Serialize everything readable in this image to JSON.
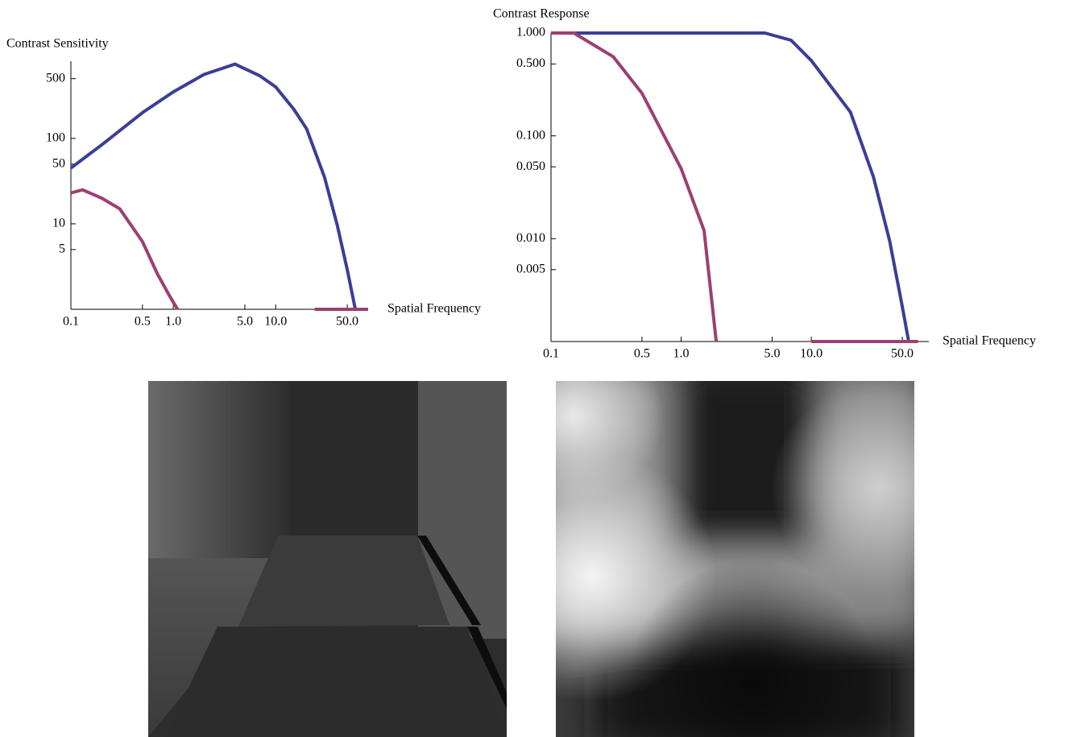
{
  "chart_data": [
    {
      "type": "line",
      "y_label": "Contrast Sensitivity",
      "x_label": "Spatial Frequency",
      "xlog": true,
      "ylog": true,
      "xlim": [
        0.1,
        80
      ],
      "ylim": [
        1,
        800
      ],
      "xticks": [
        0.1,
        0.5,
        {
          "value": 1,
          "label": "1.0"
        },
        {
          "value": 5,
          "label": "5.0"
        },
        {
          "value": 10,
          "label": "10.0"
        },
        {
          "value": 50,
          "label": "50.0"
        }
      ],
      "yticks": [
        5,
        10,
        50,
        100,
        500
      ],
      "series": [
        {
          "color": "#3b3e97",
          "x": [
            0.1,
            0.2,
            0.5,
            1,
            2,
            4,
            7,
            10,
            15,
            20,
            30,
            40,
            50,
            60
          ],
          "values": [
            45,
            84,
            200,
            350,
            560,
            740,
            540,
            400,
            220,
            130,
            35,
            9.6,
            2.9,
            1
          ]
        },
        {
          "color": "#9c3f72",
          "x": [
            0.1,
            0.13,
            0.2,
            0.3,
            0.5,
            0.7,
            0.9,
            1.1,
            1.2,
            24,
            80
          ],
          "values": [
            23,
            25,
            20,
            15,
            6.2,
            2.6,
            1.5,
            1,
            null,
            1,
            1
          ]
        }
      ]
    },
    {
      "type": "line",
      "y_label": "Contrast Response",
      "x_label": "Spatial Frequency",
      "xlog": true,
      "ylog": true,
      "xlim": [
        0.1,
        80
      ],
      "ylim": [
        0.001,
        1
      ],
      "xticks": [
        0.1,
        0.5,
        {
          "value": 1,
          "label": "1.0"
        },
        {
          "value": 5,
          "label": "5.0"
        },
        {
          "value": 10,
          "label": "10.0"
        },
        {
          "value": 50,
          "label": "50.0"
        }
      ],
      "yticks": [
        {
          "value": 0.005,
          "label": "0.005"
        },
        {
          "value": 0.01,
          "label": "0.010"
        },
        {
          "value": 0.05,
          "label": "0.050"
        },
        {
          "value": 0.1,
          "label": "0.100"
        },
        {
          "value": 0.5,
          "label": "0.500"
        },
        {
          "value": 1,
          "label": "1.000"
        }
      ],
      "series": [
        {
          "color": "#3b3e97",
          "x": [
            0.1,
            1,
            4.4,
            7,
            10,
            20,
            30,
            40,
            50,
            56
          ],
          "values": [
            1,
            1,
            1,
            0.85,
            0.54,
            0.17,
            0.04,
            0.0095,
            0.0022,
            0.001
          ]
        },
        {
          "color": "#9c3f72",
          "x": [
            0.1,
            0.15,
            0.3,
            0.5,
            1,
            1.5,
            1.86,
            5,
            10,
            66
          ],
          "values": [
            1,
            1,
            0.59,
            0.26,
            0.048,
            0.012,
            0.001,
            null,
            0.001,
            0.001
          ]
        }
      ]
    }
  ]
}
